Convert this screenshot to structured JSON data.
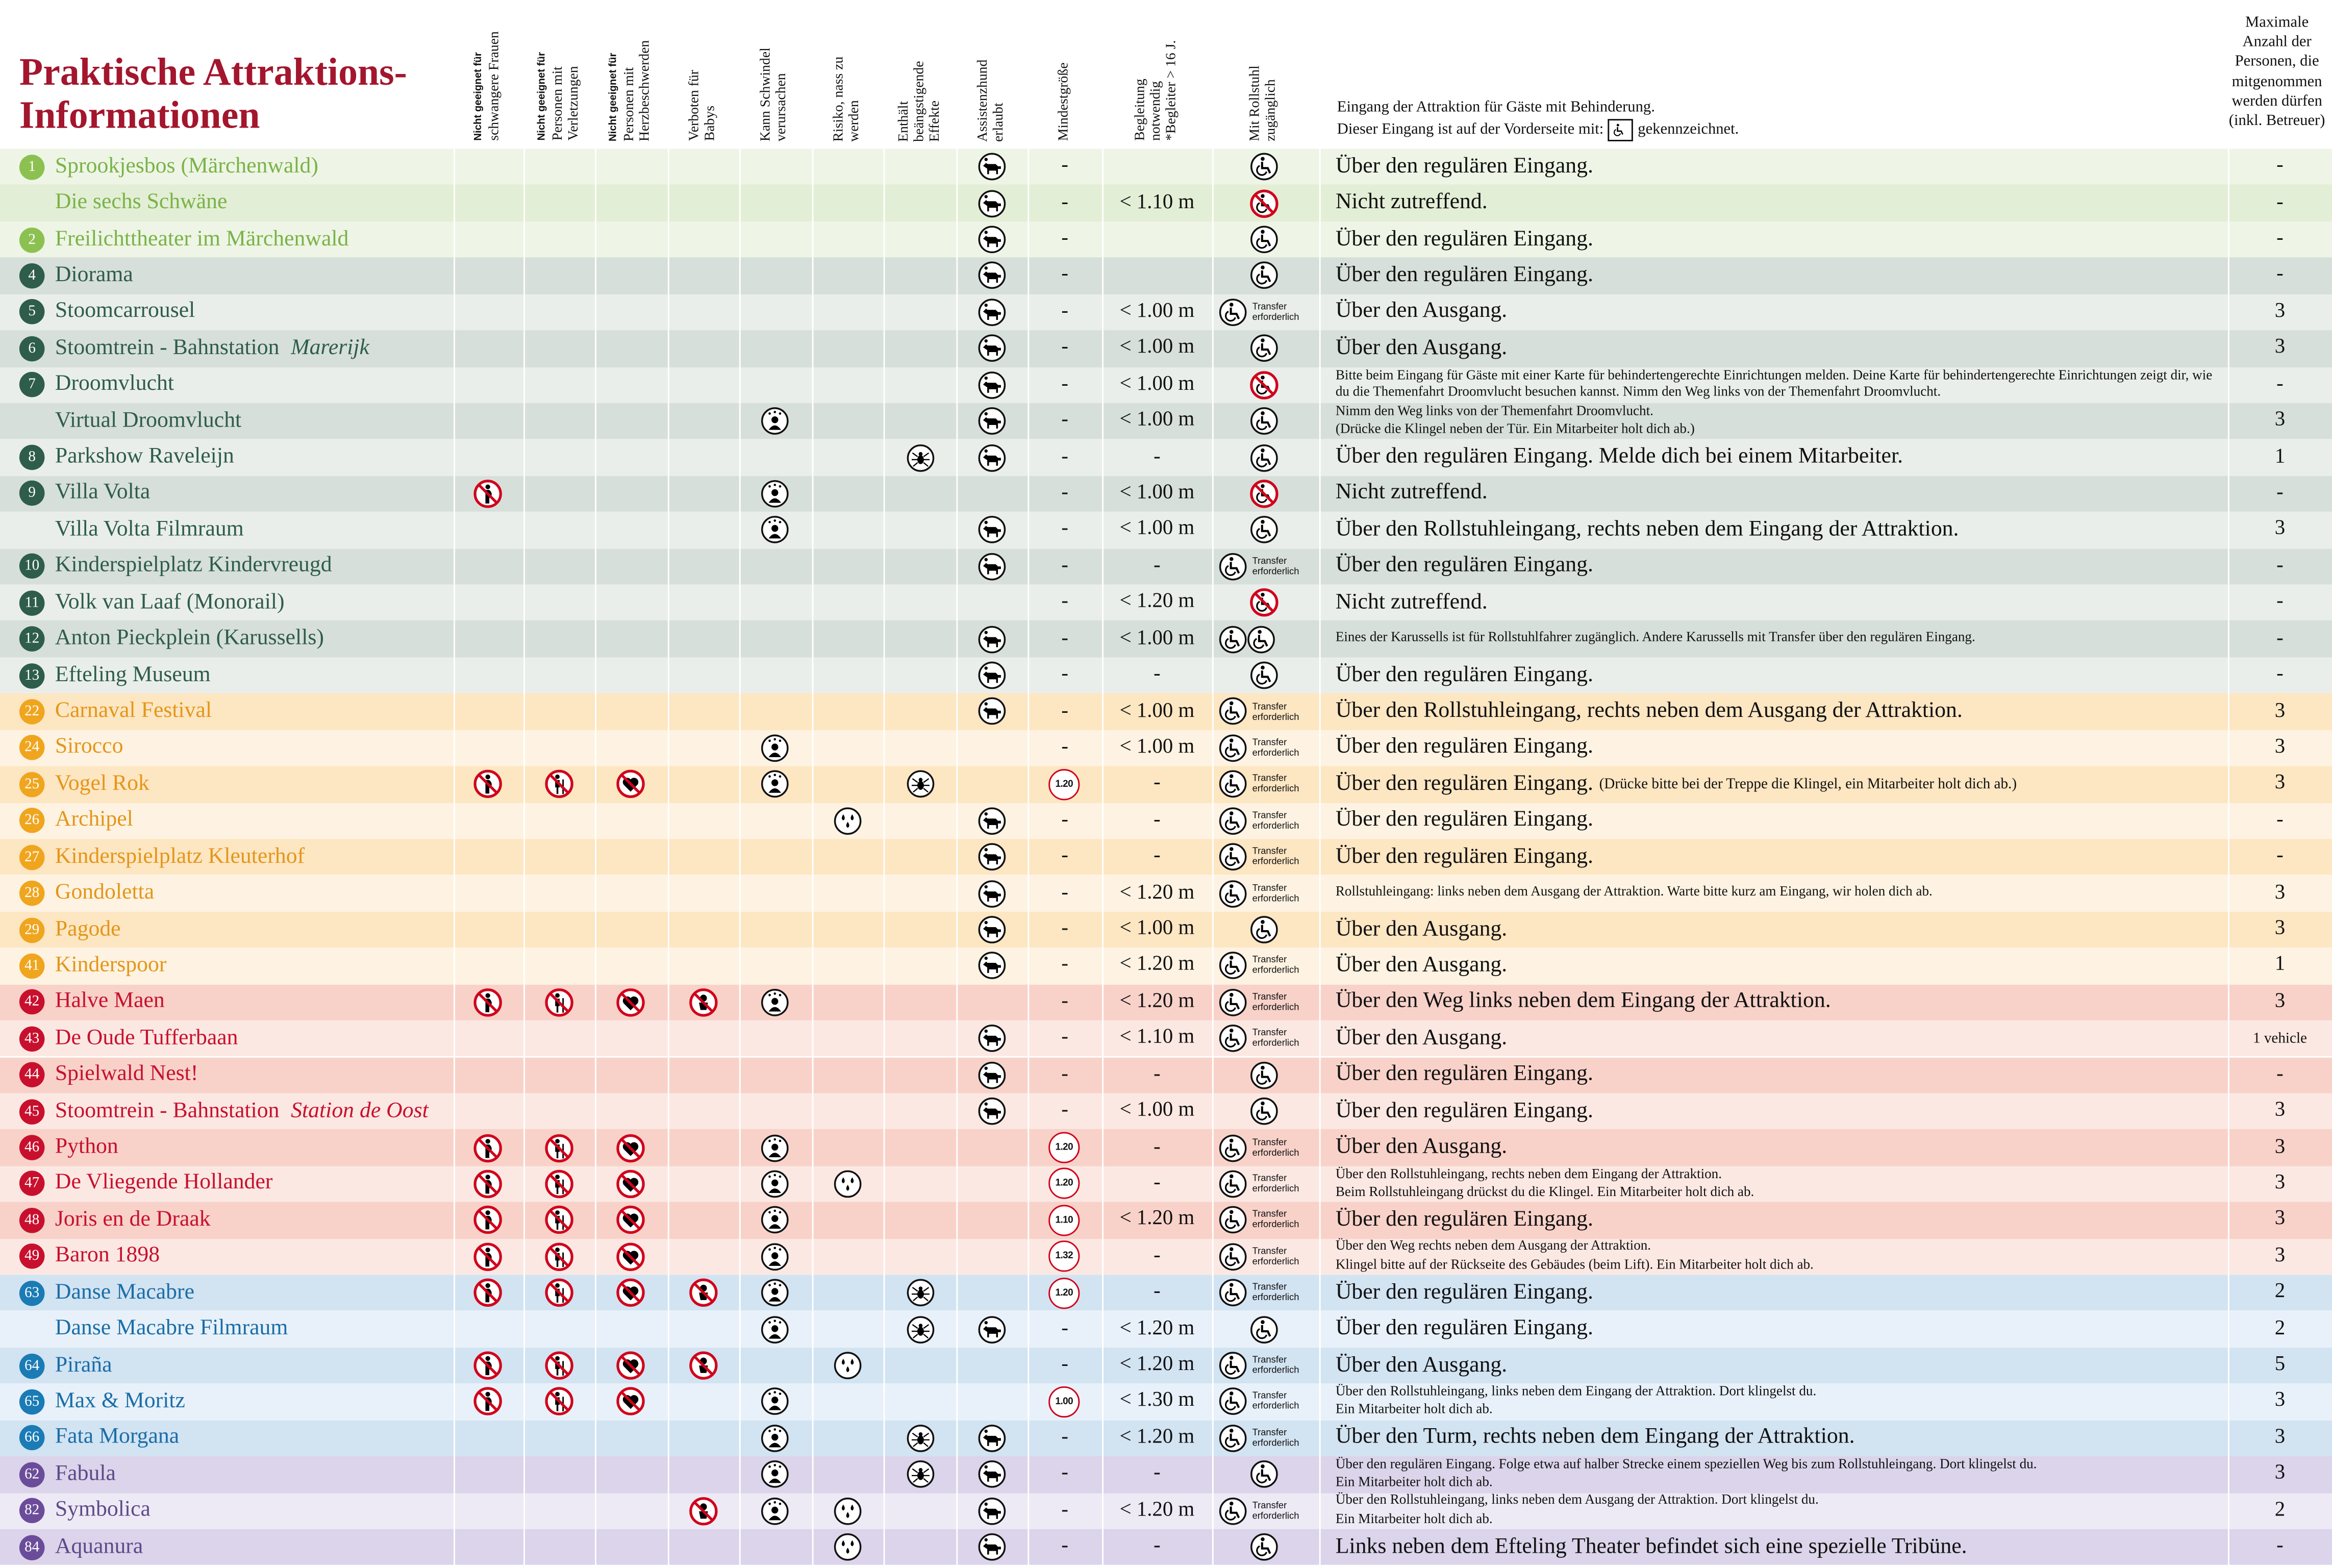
{
  "title": [
    "Praktische Attraktions-",
    "Informationen"
  ],
  "headers": {
    "icons": [
      [
        "Nicht geeignet für",
        "schwangere Frauen"
      ],
      [
        "Nicht geeignet für",
        "Personen mit",
        "Verletzungen"
      ],
      [
        "Nicht geeignet für",
        "Personen mit",
        "Herzbeschwerden"
      ],
      [
        "Verboten für",
        "Babys"
      ],
      [
        "Kann Schwindel",
        "verursachen"
      ],
      [
        "Risiko, nass zu",
        "werden"
      ],
      [
        "Enthält",
        "beängstigende",
        "Effekte"
      ],
      [
        "Assistenzhund",
        "erlaubt"
      ]
    ],
    "min": [
      "Mindestgröße"
    ],
    "acc": [
      "Begleitung",
      "notwendig",
      "*Begleiter > 16 J."
    ],
    "wheel": [
      "Mit Rollstuhl",
      "zugänglich"
    ],
    "entrance": [
      "Eingang der Attraktion für Gäste mit Behinderung.",
      "Dieser Eingang ist auf der Vorderseite mit:",
      "gekennzeichnet."
    ],
    "max": [
      "Maximale",
      "Anzahl der",
      "Personen, die",
      "mitgenommen",
      "werden dürfen",
      "(inkl. Betreuer)"
    ]
  },
  "zones": [
    {
      "circle": "#8cc152",
      "text": "#7ab347",
      "bg": [
        "#eef5e6",
        "#e3eed6"
      ]
    },
    {
      "circle": "#2e5d4b",
      "text": "#2e5d4b",
      "bg": [
        "#d7dfda",
        "#eaeeeb"
      ]
    },
    {
      "circle": "#f0a51e",
      "text": "#e4961a",
      "bg": [
        "#fde6c2",
        "#fef3e2"
      ]
    },
    {
      "circle": "#c8102e",
      "text": "#c8102e",
      "bg": [
        "#f8d2c9",
        "#fce8e3"
      ]
    },
    {
      "circle": "#1a7bb5",
      "text": "#1a6ea8",
      "bg": [
        "#d2e3f2",
        "#e8f1f9"
      ]
    },
    {
      "circle": "#6b4c9a",
      "text": "#5d4a8a",
      "bg": [
        "#dbd4ea",
        "#eeeaf5"
      ]
    }
  ],
  "rows": [
    {
      "zone": 0,
      "num": "1",
      "name": "Sprookjesbos (Märchenwald)",
      "f": [
        0,
        0,
        0,
        0,
        0,
        0,
        0,
        1
      ],
      "min": "-",
      "wheel": "ok",
      "entrance": [
        "Über den regulären Eingang."
      ],
      "max": "-"
    },
    {
      "zone": 0,
      "name": "Die sechs Schwäne",
      "f": [
        0,
        0,
        0,
        0,
        0,
        0,
        0,
        1
      ],
      "min": "-",
      "acc": "< 1.10 m",
      "wheel": "no",
      "entrance": [
        "Nicht zutreffend."
      ],
      "max": "-"
    },
    {
      "zone": 0,
      "num": "2",
      "name": "Freilichttheater im Märchenwald",
      "f": [
        0,
        0,
        0,
        0,
        0,
        0,
        0,
        1
      ],
      "min": "-",
      "wheel": "ok",
      "entrance": [
        "Über den regulären Eingang."
      ],
      "max": "-"
    },
    {
      "zone": 1,
      "num": "4",
      "name": "Diorama",
      "f": [
        0,
        0,
        0,
        0,
        0,
        0,
        0,
        1
      ],
      "min": "-",
      "wheel": "ok",
      "entrance": [
        "Über den regulären Eingang."
      ],
      "max": "-"
    },
    {
      "zone": 1,
      "num": "5",
      "name": "Stoomcarrousel",
      "f": [
        0,
        0,
        0,
        0,
        0,
        0,
        0,
        1
      ],
      "min": "-",
      "acc": "< 1.00 m",
      "wheel": "transfer",
      "transfer": "Transfer erforderlich",
      "entrance": [
        "Über den Ausgang."
      ],
      "max": "3"
    },
    {
      "zone": 1,
      "num": "6",
      "name": "Stoomtrein - Bahnstation ",
      "name_em": "Marerijk",
      "f": [
        0,
        0,
        0,
        0,
        0,
        0,
        0,
        1
      ],
      "min": "-",
      "acc": "< 1.00 m",
      "wheel": "ok",
      "entrance": [
        "Über den Ausgang."
      ],
      "max": "3"
    },
    {
      "zone": 1,
      "num": "7",
      "name": "Droomvlucht",
      "f": [
        0,
        0,
        0,
        0,
        0,
        0,
        0,
        1
      ],
      "min": "-",
      "acc": "< 1.00 m",
      "wheel": "no",
      "small": true,
      "entrance": [
        "Bitte beim Eingang für Gäste mit einer Karte für behindertengerechte Einrichtungen melden. Deine Karte für behindertengerechte Einrichtungen zeigt dir, wie du die Themenfahrt Droomvlucht besuchen kannst. Nimm den Weg links von der Themenfahrt Droomvlucht."
      ],
      "max": "-"
    },
    {
      "zone": 1,
      "name": "Virtual Droomvlucht",
      "f": [
        0,
        0,
        0,
        0,
        1,
        0,
        0,
        1
      ],
      "min": "-",
      "acc": "< 1.00 m",
      "wheel": "ok",
      "small": true,
      "entrance": [
        "Nimm den Weg links von der Themenfahrt Droomvlucht.",
        "(Drücke die Klingel neben der Tür. Ein Mitarbeiter holt dich ab.)"
      ],
      "max": "3"
    },
    {
      "zone": 1,
      "num": "8",
      "name": "Parkshow Raveleijn",
      "f": [
        0,
        0,
        0,
        0,
        0,
        0,
        1,
        1
      ],
      "min": "-",
      "acc": "-",
      "wheel": "ok",
      "entrance": [
        "Über den regulären Eingang. Melde dich bei einem Mitarbeiter."
      ],
      "max": "1"
    },
    {
      "zone": 1,
      "num": "9",
      "name": "Villa Volta",
      "f": [
        1,
        0,
        0,
        0,
        1,
        0,
        0,
        0
      ],
      "min": "-",
      "acc": "< 1.00 m",
      "wheel": "no",
      "entrance": [
        "Nicht zutreffend."
      ],
      "max": "-"
    },
    {
      "zone": 1,
      "name": "Villa Volta Filmraum",
      "f": [
        0,
        0,
        0,
        0,
        1,
        0,
        0,
        1
      ],
      "min": "-",
      "acc": "< 1.00 m",
      "wheel": "ok",
      "entrance": [
        "Über den Rollstuhleingang, rechts neben dem Eingang der Attraktion."
      ],
      "max": "3"
    },
    {
      "zone": 1,
      "num": "10",
      "name": "Kinderspielplatz Kindervreugd",
      "f": [
        0,
        0,
        0,
        0,
        0,
        0,
        0,
        1
      ],
      "min": "-",
      "acc": "-",
      "wheel": "transfer",
      "transfer": "Transfer erforderlich",
      "entrance": [
        "Über den regulären Eingang."
      ],
      "max": "-"
    },
    {
      "zone": 1,
      "num": "11",
      "name": "Volk van Laaf (Monorail)",
      "f": [
        0,
        0,
        0,
        0,
        0,
        0,
        0,
        0
      ],
      "min": "-",
      "acc": "< 1.20 m",
      "wheel": "no",
      "entrance": [
        "Nicht zutreffend."
      ],
      "max": "-"
    },
    {
      "zone": 1,
      "num": "12",
      "name": "Anton Pieckplein (Karussells)",
      "f": [
        0,
        0,
        0,
        0,
        0,
        0,
        0,
        1
      ],
      "min": "-",
      "acc": "< 1.00 m",
      "wheel": "both",
      "small": true,
      "entrance": [
        "Eines der Karussells ist für Rollstuhlfahrer zugänglich. Andere Karussells mit Transfer über den regulären Eingang."
      ],
      "max": "-"
    },
    {
      "zone": 1,
      "num": "13",
      "name": "Efteling Museum",
      "f": [
        0,
        0,
        0,
        0,
        0,
        0,
        0,
        1
      ],
      "min": "-",
      "acc": "-",
      "wheel": "ok",
      "entrance": [
        "Über den regulären Eingang."
      ],
      "max": "-"
    },
    {
      "zone": 2,
      "num": "22",
      "name": "Carnaval Festival",
      "f": [
        0,
        0,
        0,
        0,
        0,
        0,
        0,
        1
      ],
      "min": "-",
      "acc": "< 1.00 m",
      "wheel": "transfer",
      "transfer": "Transfer erforderlich",
      "entrance": [
        "Über den Rollstuhleingang, rechts neben dem Ausgang der Attraktion."
      ],
      "max": "3"
    },
    {
      "zone": 2,
      "num": "24",
      "name": "Sirocco",
      "f": [
        0,
        0,
        0,
        0,
        1,
        0,
        0,
        0
      ],
      "min": "-",
      "acc": "< 1.00 m",
      "wheel": "transfer",
      "transfer": "Transfer erforderlich",
      "entrance": [
        "Über den regulären Eingang."
      ],
      "max": "3"
    },
    {
      "zone": 2,
      "num": "25",
      "name": "Vogel Rok",
      "f": [
        1,
        1,
        1,
        0,
        1,
        0,
        1,
        0
      ],
      "min": "1.20",
      "acc": "-",
      "wheel": "transfer",
      "transfer": "Transfer erforderlich",
      "entrance": [
        "Über den regulären Eingang."
      ],
      "note": "(Drücke bitte bei der Treppe die Klingel, ein Mitarbeiter holt dich ab.)",
      "max": "3"
    },
    {
      "zone": 2,
      "num": "26",
      "name": "Archipel",
      "f": [
        0,
        0,
        0,
        0,
        0,
        1,
        0,
        1
      ],
      "min": "-",
      "acc": "-",
      "wheel": "transfer",
      "transfer": "Transfer erforderlich",
      "entrance": [
        "Über den regulären Eingang."
      ],
      "max": "-"
    },
    {
      "zone": 2,
      "num": "27",
      "name": "Kinderspielplatz Kleuterhof",
      "f": [
        0,
        0,
        0,
        0,
        0,
        0,
        0,
        1
      ],
      "min": "-",
      "acc": "-",
      "wheel": "transfer",
      "transfer": "Transfer erforderlich",
      "entrance": [
        "Über den regulären Eingang."
      ],
      "max": "-"
    },
    {
      "zone": 2,
      "num": "28",
      "name": "Gondoletta",
      "f": [
        0,
        0,
        0,
        0,
        0,
        0,
        0,
        1
      ],
      "min": "-",
      "acc": "< 1.20 m",
      "wheel": "transfer",
      "transfer": "Transfer erforderlich",
      "small": true,
      "entrance": [
        "Rollstuhleingang: links neben dem Ausgang der Attraktion. Warte bitte kurz am Eingang, wir holen dich ab."
      ],
      "max": "3"
    },
    {
      "zone": 2,
      "num": "29",
      "name": "Pagode",
      "f": [
        0,
        0,
        0,
        0,
        0,
        0,
        0,
        1
      ],
      "min": "-",
      "acc": "< 1.00 m",
      "wheel": "ok",
      "entrance": [
        "Über den Ausgang."
      ],
      "max": "3"
    },
    {
      "zone": 2,
      "num": "41",
      "name": "Kinderspoor",
      "f": [
        0,
        0,
        0,
        0,
        0,
        0,
        0,
        1
      ],
      "min": "-",
      "acc": "< 1.20 m",
      "wheel": "transfer",
      "transfer": "Transfer erforderlich",
      "entrance": [
        "Über den Ausgang."
      ],
      "max": "1"
    },
    {
      "zone": 3,
      "num": "42",
      "name": "Halve Maen",
      "f": [
        1,
        1,
        1,
        1,
        1,
        0,
        0,
        0
      ],
      "min": "-",
      "acc": "< 1.20 m",
      "wheel": "transfer",
      "transfer": "Transfer erforderlich",
      "entrance": [
        "Über den Weg links neben dem Eingang der Attraktion."
      ],
      "max": "3"
    },
    {
      "zone": 3,
      "num": "43",
      "name": "De Oude Tufferbaan",
      "f": [
        0,
        0,
        0,
        0,
        0,
        0,
        0,
        1
      ],
      "min": "-",
      "acc": "< 1.10 m",
      "wheel": "transfer",
      "transfer": "Transfer erforderlich",
      "entrance": [
        "Über den Ausgang."
      ],
      "max": "1 vehicle"
    },
    {
      "zone": 3,
      "num": "44",
      "name": "Spielwald Nest!",
      "f": [
        0,
        0,
        0,
        0,
        0,
        0,
        0,
        1
      ],
      "min": "-",
      "acc": "-",
      "wheel": "ok",
      "entrance": [
        "Über den regulären Eingang."
      ],
      "max": "-"
    },
    {
      "zone": 3,
      "num": "45",
      "name": "Stoomtrein - Bahnstation ",
      "name_em": "Station de Oost",
      "f": [
        0,
        0,
        0,
        0,
        0,
        0,
        0,
        1
      ],
      "min": "-",
      "acc": "< 1.00 m",
      "wheel": "ok",
      "entrance": [
        "Über den regulären Eingang."
      ],
      "max": "3"
    },
    {
      "zone": 3,
      "num": "46",
      "name": "Python",
      "f": [
        1,
        1,
        1,
        0,
        1,
        0,
        0,
        0
      ],
      "min": "1.20",
      "acc": "-",
      "wheel": "transfer",
      "transfer": "Transfer erforderlich",
      "entrance": [
        "Über den Ausgang."
      ],
      "max": "3"
    },
    {
      "zone": 3,
      "num": "47",
      "name": "De Vliegende Hollander",
      "f": [
        1,
        1,
        1,
        0,
        1,
        1,
        0,
        0
      ],
      "min": "1.20",
      "acc": "-",
      "wheel": "transfer",
      "transfer": "Transfer erforderlich",
      "small": true,
      "entrance": [
        "Über den Rollstuhleingang, rechts neben dem Eingang der Attraktion.",
        "Beim Rollstuhleingang drückst du die Klingel. Ein Mitarbeiter holt dich ab."
      ],
      "max": "3"
    },
    {
      "zone": 3,
      "num": "48",
      "name": "Joris en de Draak",
      "f": [
        1,
        1,
        1,
        0,
        1,
        0,
        0,
        0
      ],
      "min": "1.10",
      "acc": "< 1.20 m",
      "wheel": "transfer",
      "transfer": "Transfer erforderlich",
      "entrance": [
        "Über den regulären Eingang."
      ],
      "max": "3"
    },
    {
      "zone": 3,
      "num": "49",
      "name": "Baron 1898",
      "f": [
        1,
        1,
        1,
        0,
        1,
        0,
        0,
        0
      ],
      "min": "1.32",
      "acc": "-",
      "wheel": "transfer",
      "transfer": "Transfer erforderlich",
      "small": true,
      "entrance": [
        "Über den Weg rechts neben dem Ausgang der Attraktion.",
        "Klingel bitte auf der Rückseite des Gebäudes (beim Lift). Ein Mitarbeiter holt dich ab."
      ],
      "max": "3"
    },
    {
      "zone": 4,
      "num": "63",
      "name": "Danse Macabre",
      "f": [
        1,
        1,
        1,
        1,
        1,
        0,
        1,
        0
      ],
      "min": "1.20",
      "acc": "-",
      "wheel": "transfer",
      "transfer": "Transfer erforderlich",
      "entrance": [
        "Über den regulären Eingang."
      ],
      "max": "2"
    },
    {
      "zone": 4,
      "name": "Danse Macabre Filmraum",
      "f": [
        0,
        0,
        0,
        0,
        1,
        0,
        1,
        1
      ],
      "min": "-",
      "acc": "< 1.20 m",
      "wheel": "ok",
      "entrance": [
        "Über den regulären Eingang."
      ],
      "max": "2"
    },
    {
      "zone": 4,
      "num": "64",
      "name": "Piraña",
      "f": [
        1,
        1,
        1,
        1,
        0,
        1,
        0,
        0
      ],
      "min": "-",
      "acc": "< 1.20 m",
      "wheel": "transfer",
      "transfer": "Transfer erforderlich",
      "entrance": [
        "Über den Ausgang."
      ],
      "max": "5"
    },
    {
      "zone": 4,
      "num": "65",
      "name": "Max & Moritz",
      "f": [
        1,
        1,
        1,
        0,
        1,
        0,
        0,
        0
      ],
      "min": "1.00",
      "acc": "< 1.30 m",
      "wheel": "transfer",
      "transfer": "Transfer erforderlich",
      "small": true,
      "entrance": [
        "Über den Rollstuhleingang, links neben dem Eingang der Attraktion. Dort klingelst du.",
        "Ein Mitarbeiter holt dich ab."
      ],
      "max": "3"
    },
    {
      "zone": 4,
      "num": "66",
      "name": "Fata Morgana",
      "f": [
        0,
        0,
        0,
        0,
        1,
        0,
        1,
        1
      ],
      "min": "-",
      "acc": "< 1.20 m",
      "wheel": "transfer",
      "transfer": "Transfer erforderlich",
      "entrance": [
        "Über den Turm, rechts neben dem Eingang der Attraktion."
      ],
      "max": "3"
    },
    {
      "zone": 5,
      "num": "62",
      "name": "Fabula",
      "f": [
        0,
        0,
        0,
        0,
        1,
        0,
        1,
        1
      ],
      "min": "-",
      "acc": "-",
      "wheel": "ok",
      "small": true,
      "entrance": [
        "Über den regulären Eingang. Folge etwa auf halber Strecke einem speziellen Weg bis zum Rollstuhleingang. Dort klingelst du.",
        "Ein Mitarbeiter holt dich ab."
      ],
      "max": "3"
    },
    {
      "zone": 5,
      "num": "82",
      "name": "Symbolica",
      "f": [
        0,
        0,
        0,
        1,
        1,
        1,
        0,
        1
      ],
      "min": "-",
      "acc": "< 1.20 m",
      "wheel": "transfer",
      "transfer": "Transfer erforderlich",
      "small": true,
      "entrance": [
        "Über den Rollstuhleingang, links neben dem Ausgang der Attraktion. Dort klingelst du.",
        "Ein Mitarbeiter holt dich ab."
      ],
      "max": "2"
    },
    {
      "zone": 5,
      "num": "84",
      "name": "Aquanura",
      "f": [
        0,
        0,
        0,
        0,
        0,
        1,
        0,
        1
      ],
      "min": "-",
      "acc": "-",
      "wheel": "ok",
      "entrance": [
        "Links neben dem Efteling Theater befindet sich eine spezielle Tribüne."
      ],
      "max": "-"
    }
  ]
}
